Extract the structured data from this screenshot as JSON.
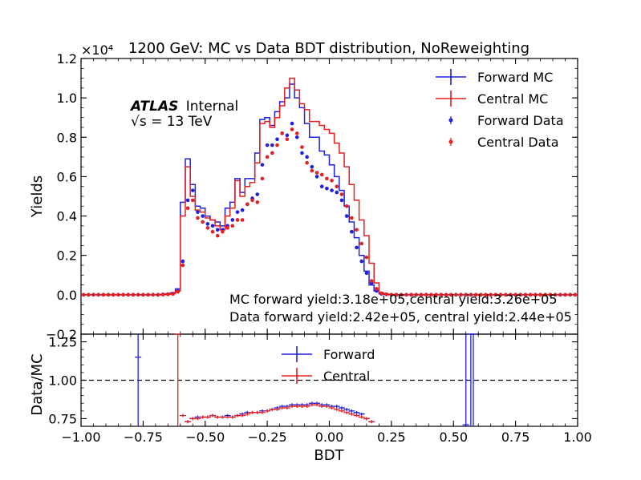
{
  "chart_data": [
    {
      "type": "line",
      "title": "1200 GeV: MC vs Data BDT distribution, NoReweighting",
      "xlabel": "",
      "ylabel": "Yields",
      "xlim": [
        -1.0,
        1.0
      ],
      "ylim": [
        -0.2,
        1.2
      ],
      "y_multiplier": "×10⁴",
      "yticks": [
        "−0.2",
        "0.0",
        "0.2",
        "0.4",
        "0.6",
        "0.8",
        "1.0",
        "1.2"
      ],
      "legend_position": "top-right",
      "legend": [
        "Forward MC",
        "Central MC",
        "Forward Data",
        "Central Data"
      ],
      "atlas_label": "ATLAS",
      "atlas_status": "Internal",
      "energy_label": "√s = 13 TeV",
      "annotations": [
        "MC forward yield:3.18e+05,central yield:3.26e+05",
        "Data forward yield:2.42e+05, central yield:2.44e+05"
      ],
      "grid": false,
      "bin_edges": [
        -1.0,
        -0.98,
        -0.96,
        -0.94,
        -0.92,
        -0.9,
        -0.88,
        -0.86,
        -0.84,
        -0.82,
        -0.8,
        -0.78,
        -0.76,
        -0.74,
        -0.72,
        -0.7,
        -0.68,
        -0.66,
        -0.64,
        -0.62,
        -0.6,
        -0.58,
        -0.56,
        -0.54,
        -0.52,
        -0.5,
        -0.48,
        -0.46,
        -0.44,
        -0.42,
        -0.4,
        -0.38,
        -0.36,
        -0.34,
        -0.32,
        -0.3,
        -0.28,
        -0.26,
        -0.24,
        -0.22,
        -0.2,
        -0.18,
        -0.16,
        -0.14,
        -0.12,
        -0.1,
        -0.08,
        -0.06,
        -0.04,
        -0.02,
        0.0,
        0.02,
        0.04,
        0.06,
        0.08,
        0.1,
        0.12,
        0.14,
        0.16,
        0.18,
        0.2,
        0.22,
        0.24,
        0.26,
        0.28,
        0.3,
        0.32,
        0.34,
        0.36,
        0.38,
        0.4,
        0.42,
        0.44,
        0.46,
        0.48,
        0.5,
        0.52,
        0.54,
        0.56,
        0.58,
        0.6,
        0.62,
        0.64,
        0.66,
        0.68,
        0.7,
        0.72,
        0.74,
        0.76,
        0.78,
        0.8,
        0.82,
        0.84,
        0.86,
        0.88,
        0.9,
        0.92,
        0.94,
        0.96,
        0.98,
        1.0
      ],
      "series": [
        {
          "name": "Forward MC",
          "style": "step",
          "color": "#1f1fdd",
          "values": [
            0,
            0,
            0,
            0,
            0,
            0,
            0,
            0,
            0,
            0,
            0,
            0,
            0,
            0,
            0,
            0,
            0.002,
            0.005,
            0.01,
            0.03,
            0.47,
            0.69,
            0.56,
            0.45,
            0.44,
            0.4,
            0.38,
            0.37,
            0.35,
            0.44,
            0.47,
            0.59,
            0.52,
            0.59,
            0.59,
            0.72,
            0.89,
            0.9,
            0.86,
            0.93,
            0.98,
            1.0,
            1.07,
            1.0,
            0.95,
            0.87,
            0.8,
            0.8,
            0.73,
            0.71,
            0.66,
            0.6,
            0.53,
            0.45,
            0.37,
            0.29,
            0.2,
            0.12,
            0.05,
            0.02,
            0.005,
            0.002,
            0,
            0,
            0,
            0,
            0,
            0,
            0,
            0,
            0,
            0,
            0,
            0,
            0,
            0,
            0,
            0,
            0,
            0,
            0,
            0,
            0,
            0,
            0,
            0,
            0,
            0,
            0,
            0,
            0,
            0,
            0,
            0,
            0,
            0,
            0,
            0,
            0,
            0
          ]
        },
        {
          "name": "Central MC",
          "style": "step",
          "color": "#e51f1f",
          "values": [
            0,
            0,
            0,
            0,
            0,
            0,
            0,
            0,
            0,
            0,
            0,
            0,
            0,
            0,
            0,
            0,
            0.001,
            0.003,
            0.006,
            0.02,
            0.4,
            0.65,
            0.5,
            0.43,
            0.42,
            0.39,
            0.38,
            0.35,
            0.33,
            0.4,
            0.44,
            0.58,
            0.5,
            0.55,
            0.57,
            0.67,
            0.87,
            0.88,
            0.85,
            0.9,
            0.96,
            1.05,
            1.1,
            1.04,
            0.97,
            0.94,
            0.88,
            0.88,
            0.86,
            0.84,
            0.82,
            0.77,
            0.72,
            0.65,
            0.56,
            0.48,
            0.38,
            0.3,
            0.16,
            0.06,
            0.01,
            0.004,
            0.001,
            0,
            0,
            0,
            0,
            0,
            0,
            0,
            0,
            0,
            0,
            0,
            0,
            0,
            0,
            0,
            0,
            0,
            0,
            0,
            0,
            0,
            0,
            0,
            0,
            0,
            0,
            0,
            0,
            0,
            0,
            0,
            0,
            0,
            0,
            0,
            0,
            0,
            0
          ]
        },
        {
          "name": "Forward Data",
          "style": "marker",
          "color": "#1f1fdd",
          "values": [
            0,
            0,
            0,
            0,
            0,
            0,
            0,
            0,
            0,
            0,
            0,
            0,
            0,
            0,
            0,
            0,
            0.002,
            0.003,
            0.006,
            0.02,
            0.17,
            0.48,
            0.53,
            0.42,
            0.4,
            0.36,
            0.35,
            0.33,
            0.33,
            0.35,
            0.38,
            0.42,
            0.43,
            0.46,
            0.49,
            0.51,
            0.66,
            0.76,
            0.76,
            0.79,
            0.82,
            0.81,
            0.87,
            0.8,
            0.72,
            0.7,
            0.65,
            0.6,
            0.55,
            0.54,
            0.53,
            0.52,
            0.48,
            0.4,
            0.32,
            0.24,
            0.17,
            0.11,
            0.06,
            0.02,
            0.005,
            0.002,
            0,
            0,
            0,
            0,
            0,
            0,
            0,
            0,
            0,
            0,
            0,
            0,
            0,
            0,
            0,
            0,
            0,
            0,
            0,
            0,
            0,
            0,
            0,
            0,
            0,
            0,
            0,
            0,
            0,
            0,
            0,
            0,
            0,
            0,
            0,
            0,
            0,
            0
          ]
        },
        {
          "name": "Central Data",
          "style": "marker",
          "color": "#e51f1f",
          "values": [
            0,
            0,
            0,
            0,
            0,
            0,
            0,
            0,
            0,
            0,
            0,
            0,
            0,
            0,
            0,
            0,
            0.001,
            0.002,
            0.004,
            0.015,
            0.15,
            0.44,
            0.48,
            0.39,
            0.37,
            0.34,
            0.32,
            0.3,
            0.32,
            0.34,
            0.35,
            0.38,
            0.38,
            0.46,
            0.48,
            0.47,
            0.59,
            0.7,
            0.72,
            0.76,
            0.82,
            0.79,
            0.84,
            0.82,
            0.75,
            0.67,
            0.63,
            0.62,
            0.61,
            0.59,
            0.58,
            0.55,
            0.51,
            0.45,
            0.39,
            0.33,
            0.26,
            0.19,
            0.07,
            0.03,
            0.008,
            0.003,
            0,
            0,
            0,
            0,
            0,
            0,
            0,
            0,
            0,
            0,
            0,
            0,
            0,
            0,
            0,
            0,
            0,
            0,
            0,
            0,
            0,
            0,
            0,
            0,
            0,
            0,
            0,
            0,
            0,
            0,
            0,
            0,
            0,
            0,
            0,
            0,
            0,
            0
          ]
        }
      ]
    },
    {
      "type": "line",
      "xlabel": "BDT",
      "ylabel": "Data/MC",
      "xlim": [
        -1.0,
        1.0
      ],
      "ylim": [
        0.7,
        1.3
      ],
      "xticks": [
        "−1.00",
        "−0.75",
        "−0.50",
        "−0.25",
        "0.00",
        "0.25",
        "0.50",
        "0.75",
        "1.00"
      ],
      "yticks": [
        "0.75",
        "1.00",
        "1.25"
      ],
      "reference_line": 1.0,
      "legend_position": "top-center",
      "legend": [
        "Forward",
        "Central"
      ],
      "grid": false,
      "series": [
        {
          "name": "Forward",
          "color": "#1f1fdd",
          "points": [
            [
              -0.77,
              1.15
            ],
            [
              -0.57,
              0.73
            ],
            [
              -0.55,
              0.75
            ],
            [
              -0.53,
              0.76
            ],
            [
              -0.51,
              0.76
            ],
            [
              -0.49,
              0.76
            ],
            [
              -0.47,
              0.77
            ],
            [
              -0.45,
              0.76
            ],
            [
              -0.43,
              0.76
            ],
            [
              -0.41,
              0.77
            ],
            [
              -0.39,
              0.76
            ],
            [
              -0.37,
              0.77
            ],
            [
              -0.35,
              0.78
            ],
            [
              -0.33,
              0.79
            ],
            [
              -0.31,
              0.79
            ],
            [
              -0.29,
              0.79
            ],
            [
              -0.27,
              0.8
            ],
            [
              -0.25,
              0.8
            ],
            [
              -0.23,
              0.81
            ],
            [
              -0.21,
              0.82
            ],
            [
              -0.19,
              0.83
            ],
            [
              -0.17,
              0.83
            ],
            [
              -0.15,
              0.84
            ],
            [
              -0.13,
              0.84
            ],
            [
              -0.11,
              0.84
            ],
            [
              -0.09,
              0.84
            ],
            [
              -0.07,
              0.85
            ],
            [
              -0.05,
              0.85
            ],
            [
              -0.03,
              0.84
            ],
            [
              -0.01,
              0.84
            ],
            [
              0.01,
              0.83
            ],
            [
              0.03,
              0.83
            ],
            [
              0.05,
              0.82
            ],
            [
              0.07,
              0.81
            ],
            [
              0.09,
              0.8
            ],
            [
              0.11,
              0.79
            ],
            [
              0.13,
              0.78
            ],
            [
              0.15,
              0.75
            ],
            [
              0.17,
              0.73
            ],
            [
              0.55,
              0.71
            ],
            [
              0.57,
              1.3
            ],
            [
              0.58,
              1.3
            ]
          ]
        },
        {
          "name": "Central",
          "color": "#e51f1f",
          "points": [
            [
              -0.61,
              1.3
            ],
            [
              -0.59,
              0.77
            ],
            [
              -0.57,
              0.73
            ],
            [
              -0.55,
              0.75
            ],
            [
              -0.53,
              0.75
            ],
            [
              -0.51,
              0.76
            ],
            [
              -0.49,
              0.76
            ],
            [
              -0.47,
              0.77
            ],
            [
              -0.45,
              0.76
            ],
            [
              -0.43,
              0.76
            ],
            [
              -0.41,
              0.76
            ],
            [
              -0.39,
              0.76
            ],
            [
              -0.37,
              0.77
            ],
            [
              -0.35,
              0.77
            ],
            [
              -0.33,
              0.78
            ],
            [
              -0.31,
              0.79
            ],
            [
              -0.29,
              0.79
            ],
            [
              -0.27,
              0.79
            ],
            [
              -0.25,
              0.8
            ],
            [
              -0.23,
              0.81
            ],
            [
              -0.21,
              0.81
            ],
            [
              -0.19,
              0.82
            ],
            [
              -0.17,
              0.82
            ],
            [
              -0.15,
              0.83
            ],
            [
              -0.13,
              0.83
            ],
            [
              -0.11,
              0.83
            ],
            [
              -0.09,
              0.83
            ],
            [
              -0.07,
              0.84
            ],
            [
              -0.05,
              0.84
            ],
            [
              -0.03,
              0.83
            ],
            [
              -0.01,
              0.83
            ],
            [
              0.01,
              0.82
            ],
            [
              0.03,
              0.81
            ],
            [
              0.05,
              0.8
            ],
            [
              0.07,
              0.79
            ],
            [
              0.09,
              0.78
            ],
            [
              0.11,
              0.77
            ],
            [
              0.13,
              0.76
            ],
            [
              0.15,
              0.75
            ],
            [
              0.17,
              0.73
            ]
          ]
        }
      ]
    }
  ]
}
